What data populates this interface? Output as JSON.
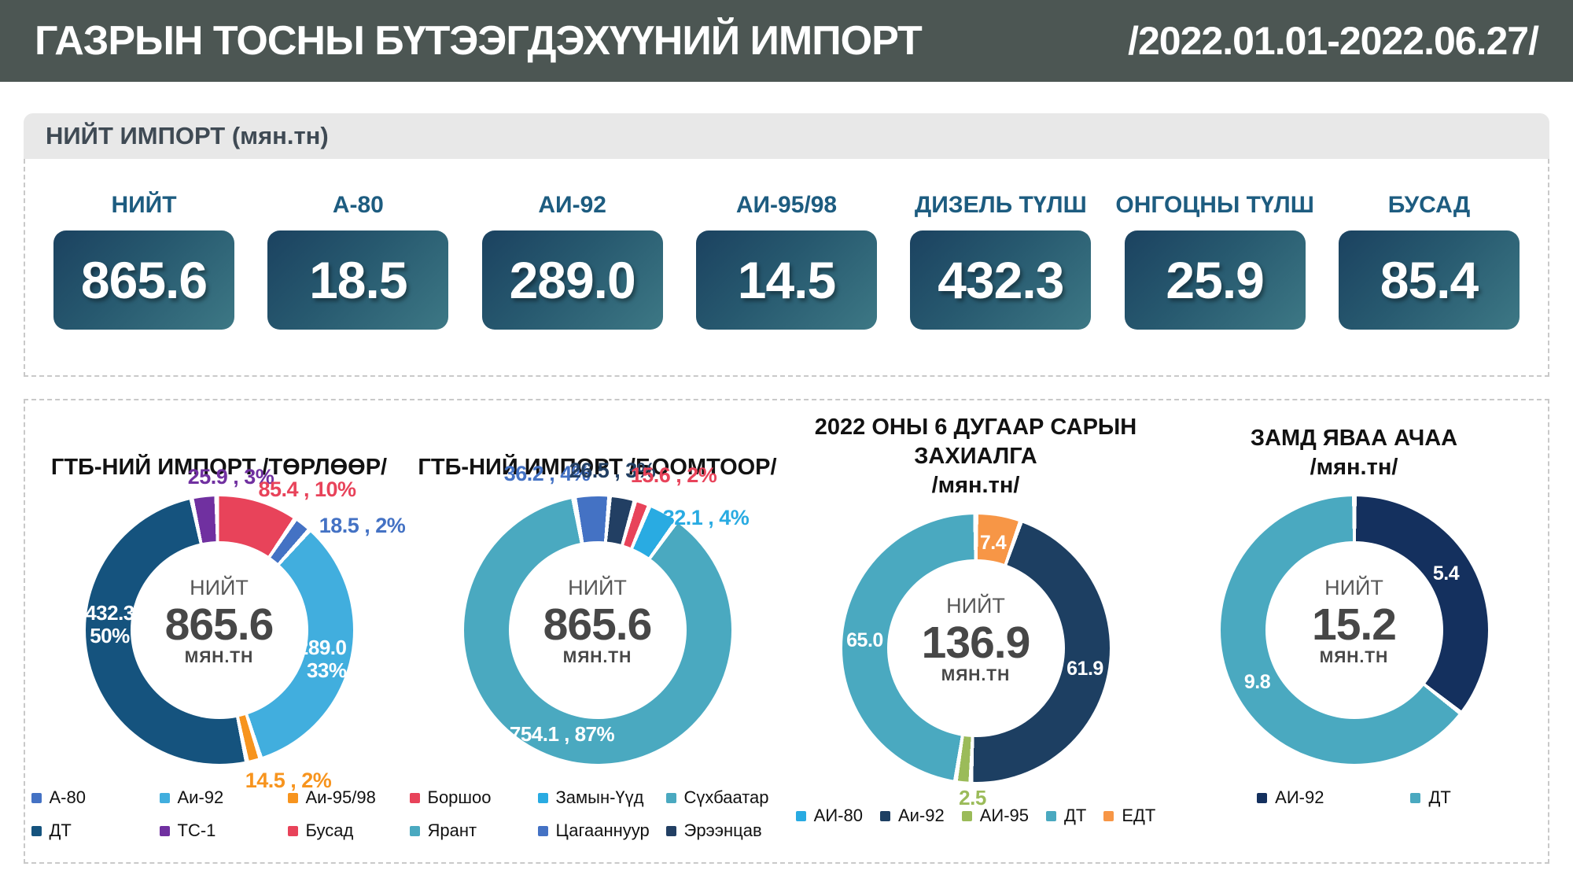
{
  "theme": {
    "header_bg": "#4c5653",
    "section_bar_bg": "#e8e8e8",
    "kpi_label_color": "#1d5c80",
    "kpi_card_gradient": [
      "#1b4260",
      "#27596f",
      "#3d7885"
    ]
  },
  "header": {
    "title": "ГАЗРЫН ТОСНЫ БҮТЭЭГДЭХҮҮНИЙ ИМПОРТ",
    "period": "/2022.01.01-2022.06.27/"
  },
  "summary": {
    "section_title": "НИЙТ ИМПОРТ (мян.тн)",
    "cards": [
      {
        "label": "НИЙТ",
        "value": "865.6"
      },
      {
        "label": "А-80",
        "value": "18.5"
      },
      {
        "label": "АИ-92",
        "value": "289.0"
      },
      {
        "label": "АИ-95/98",
        "value": "14.5"
      },
      {
        "label": "ДИЗЕЛЬ ТҮЛШ",
        "value": "432.3"
      },
      {
        "label": "ОНГОЦНЫ ТҮЛШ",
        "value": "25.9"
      },
      {
        "label": "БУСАД",
        "value": "85.4"
      }
    ]
  },
  "chart_data": [
    {
      "type": "pie",
      "title": "ГТБ-НИЙ ИМПОРТ /ТӨРЛӨӨР/",
      "subtitle": "",
      "center": {
        "label": "НИЙТ",
        "value": "865.6",
        "unit": "МЯН.ТН"
      },
      "total": 865.6,
      "start_angle": -12,
      "slices": [
        {
          "label": "ТС-1",
          "value": 25.9,
          "pct": "3%",
          "color": "#7030a0"
        },
        {
          "label": "Бусад",
          "value": 85.4,
          "pct": "10%",
          "color": "#e8435a"
        },
        {
          "label": "А-80",
          "value": 18.5,
          "pct": "2%",
          "color": "#4472c4"
        },
        {
          "label": "Аи-92",
          "value": 289.0,
          "pct": "33%",
          "color": "#41aede"
        },
        {
          "label": "Аи-95/98",
          "value": 14.5,
          "pct": "2%",
          "color": "#f7941e"
        },
        {
          "label": "ДТ",
          "value": 432.3,
          "pct": "50%",
          "color": "#15537e"
        }
      ],
      "labels": [
        {
          "text": "25.9 , 3%",
          "color": "#7030a0"
        },
        {
          "text": "85.4 , 10%",
          "color": "#e8435a"
        },
        {
          "text": "18.5 , 2%",
          "color": "#4472c4"
        },
        {
          "text": "289.0\n33%",
          "color": "#ffffff"
        },
        {
          "text": "14.5 , 2%",
          "color": "#f7941e"
        },
        {
          "text": "432.3\n50%",
          "color": "#ffffff"
        }
      ],
      "legend": [
        {
          "label": "А-80",
          "color": "#4472c4"
        },
        {
          "label": "Аи-92",
          "color": "#41aede"
        },
        {
          "label": "Аи-95/98",
          "color": "#f7941e"
        },
        {
          "label": "ДТ",
          "color": "#15537e"
        },
        {
          "label": "ТС-1",
          "color": "#7030a0"
        },
        {
          "label": "Бусад",
          "color": "#e8435a"
        }
      ]
    },
    {
      "type": "pie",
      "title": "ГТБ-НИЙ ИМПОРТ /БООМТООР/",
      "subtitle": "",
      "center": {
        "label": "НИЙТ",
        "value": "865.6",
        "unit": "МЯН.ТН"
      },
      "total": 865.6,
      "start_angle": -10,
      "slices": [
        {
          "label": "Цагааннуур",
          "value": 36.2,
          "pct": "4%",
          "color": "#4472c4"
        },
        {
          "label": "Эрээнцав",
          "value": 26.5,
          "pct": "3%",
          "color": "#223f63"
        },
        {
          "label": "Боршоо",
          "value": 15.6,
          "pct": "2%",
          "color": "#e8435a"
        },
        {
          "label": "Замын-Үүд",
          "value": 32.1,
          "pct": "4%",
          "color": "#29abe2"
        },
        {
          "label": "Ярант",
          "value": 754.1,
          "pct": "87%",
          "color": "#4aa9c0"
        }
      ],
      "labels": [
        {
          "text": "36.2 , 4%",
          "color": "#4472c4"
        },
        {
          "text": "26.5 , 3%",
          "color": "#223f63"
        },
        {
          "text": "15.6 , 2%",
          "color": "#e8435a"
        },
        {
          "text": "32.1 , 4%",
          "color": "#29abe2"
        },
        {
          "text": "754.1 , 87%",
          "color": "#ffffff"
        }
      ],
      "legend": [
        {
          "label": "Боршоо",
          "color": "#e8435a"
        },
        {
          "label": "Замын-Үүд",
          "color": "#29abe2"
        },
        {
          "label": "Сүхбаатар",
          "color": "#4aa9c0"
        },
        {
          "label": "Ярант",
          "color": "#4aa9c0"
        },
        {
          "label": "Цагааннуур",
          "color": "#4472c4"
        },
        {
          "label": "Эрээнцав",
          "color": "#223f63"
        }
      ]
    },
    {
      "type": "pie",
      "title": "2022 ОНЫ 6 ДУГААР САРЫН ЗАХИАЛГА",
      "subtitle": "/мян.тн/",
      "center": {
        "label": "НИЙТ",
        "value": "136.9",
        "unit": "МЯН.ТН"
      },
      "total": 136.9,
      "start_angle": 0,
      "slices": [
        {
          "label": "ЕДТ",
          "value": 7.4,
          "color": "#f79646"
        },
        {
          "label": "Аи-92",
          "value": 61.9,
          "color": "#1d3f62"
        },
        {
          "label": "АИ-95",
          "value": 2.5,
          "color": "#9bbb59"
        },
        {
          "label": "ДТ",
          "value": 65.0,
          "color": "#4aa9c0"
        }
      ],
      "labels": [
        {
          "text": "7.4",
          "color": "#ffffff"
        },
        {
          "text": "61.9",
          "color": "#ffffff"
        },
        {
          "text": "2.5",
          "color": "#9bbb59"
        },
        {
          "text": "65.0",
          "color": "#ffffff"
        }
      ],
      "legend": [
        {
          "label": "АИ-80",
          "color": "#29abe2"
        },
        {
          "label": "Аи-92",
          "color": "#1d3f62"
        },
        {
          "label": "АИ-95",
          "color": "#9bbb59"
        },
        {
          "label": "ДТ",
          "color": "#4aa9c0"
        },
        {
          "label": "ЕДТ",
          "color": "#f79646"
        }
      ]
    },
    {
      "type": "pie",
      "title": "ЗАМД ЯВАА АЧАА",
      "subtitle": "/мян.тн/",
      "center": {
        "label": "НИЙТ",
        "value": "15.2",
        "unit": "МЯН.ТН"
      },
      "total": 15.2,
      "start_angle": 0,
      "slices": [
        {
          "label": "АИ-92",
          "value": 5.4,
          "color": "#14305e"
        },
        {
          "label": "ДТ",
          "value": 9.8,
          "color": "#4aa9c0"
        }
      ],
      "labels": [
        {
          "text": "5.4",
          "color": "#ffffff"
        },
        {
          "text": "9.8",
          "color": "#ffffff"
        }
      ],
      "legend": [
        {
          "label": "АИ-92",
          "color": "#14305e"
        },
        {
          "label": "ДТ",
          "color": "#4aa9c0"
        }
      ]
    }
  ]
}
